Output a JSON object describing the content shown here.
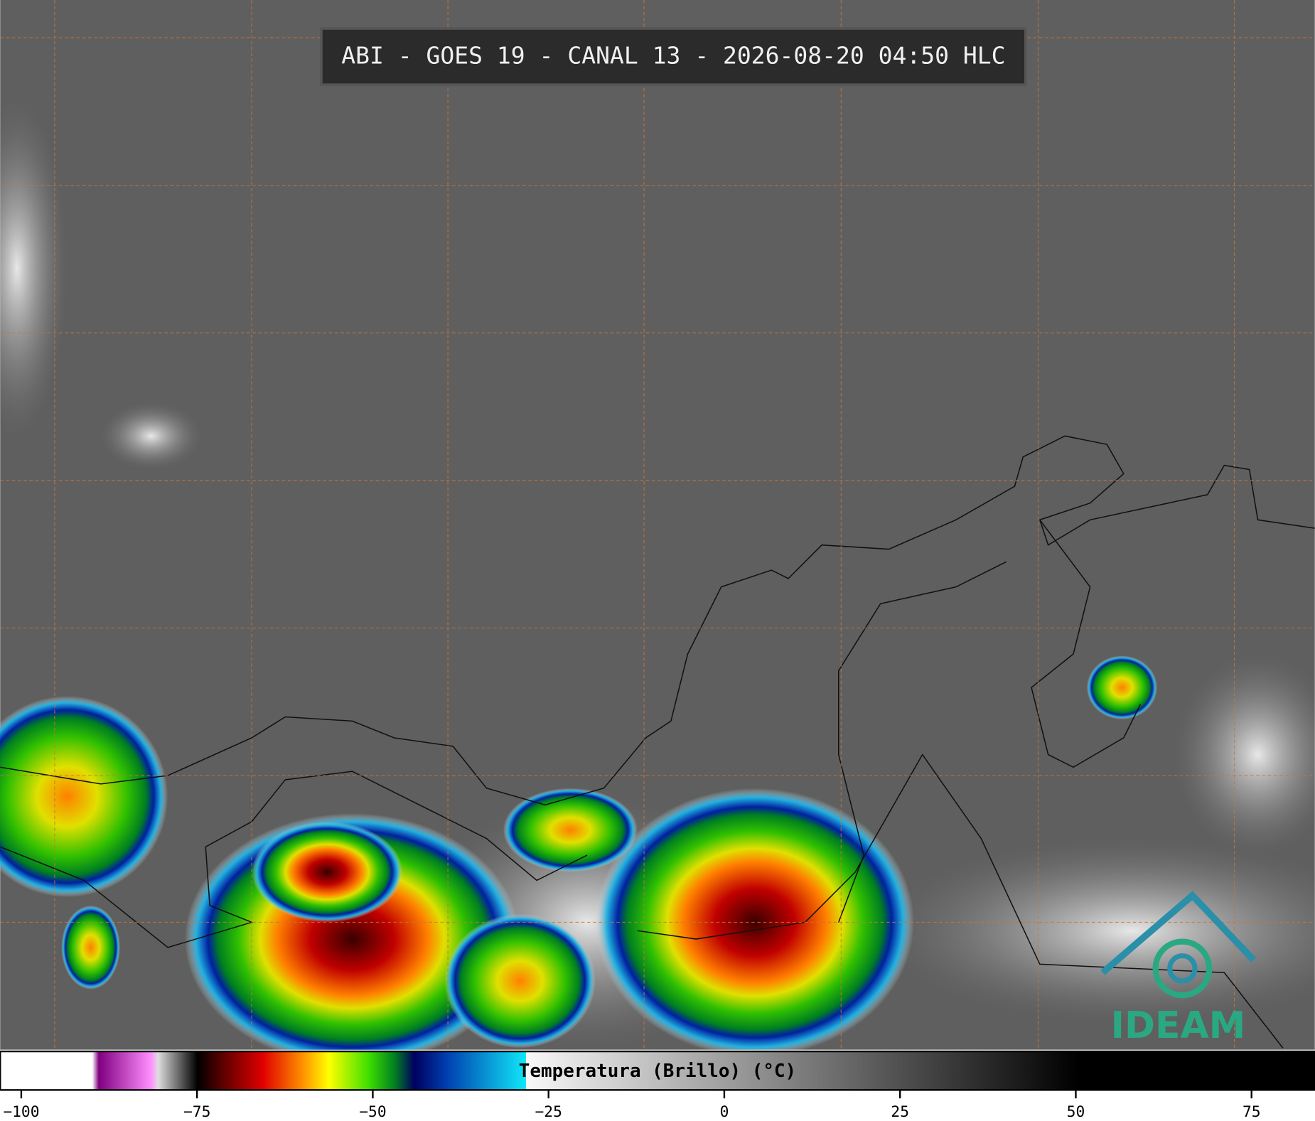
{
  "header": {
    "title": "ABI - GOES 19 - CANAL 13 - 2026-08-20 04:50 HLC"
  },
  "colorbar": {
    "label": "Temperatura (Brillo) (°C)",
    "lim": [
      -103,
      84
    ],
    "ticks": [
      {
        "value": -100,
        "label": "−100"
      },
      {
        "value": -75,
        "label": "−75"
      },
      {
        "value": -50,
        "label": "−50"
      },
      {
        "value": -25,
        "label": "−25"
      },
      0,
      25,
      50,
      75
    ]
  },
  "logo": {
    "text": "IDEAM"
  }
}
